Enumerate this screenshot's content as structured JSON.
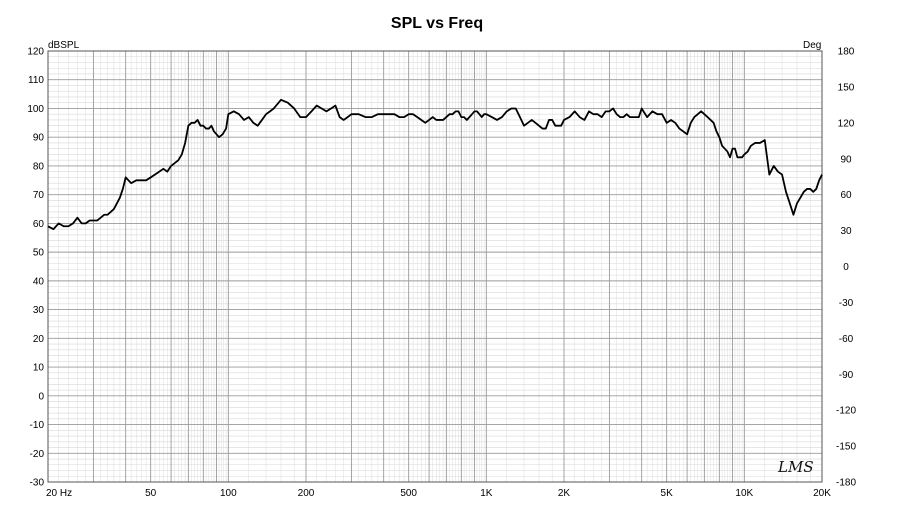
{
  "chart_data": {
    "type": "line",
    "title": "SPL vs Freq",
    "ylabel_left": "dBSPL",
    "ylabel_right": "Deg",
    "xscale": "log",
    "xlim": [
      20,
      20000
    ],
    "ylim": [
      -30,
      120
    ],
    "ylim_right": [
      -180,
      180
    ],
    "grid": true,
    "legend": "none",
    "x_ticks": [
      {
        "value": 20,
        "label": "20 Hz"
      },
      {
        "value": 50,
        "label": "50"
      },
      {
        "value": 100,
        "label": "100"
      },
      {
        "value": 200,
        "label": "200"
      },
      {
        "value": 500,
        "label": "500"
      },
      {
        "value": 1000,
        "label": "1K"
      },
      {
        "value": 2000,
        "label": "2K"
      },
      {
        "value": 5000,
        "label": "5K"
      },
      {
        "value": 10000,
        "label": "10K"
      },
      {
        "value": 20000,
        "label": "20K"
      }
    ],
    "y_ticks_left": [
      "120",
      "110",
      "100",
      "90",
      "80",
      "70",
      "60",
      "50",
      "40",
      "30",
      "20",
      "10",
      "0",
      "-10",
      "-20",
      "-30"
    ],
    "y_ticks_right": [
      "180",
      "150",
      "120",
      "90",
      "60",
      "30",
      "0",
      "-30",
      "-60",
      "-90",
      "-120",
      "-150",
      "-180"
    ],
    "series": [
      {
        "color": "#000000",
        "x": [
          20,
          21,
          22,
          23,
          24,
          25,
          26,
          27,
          28,
          29,
          30,
          31,
          32,
          33,
          34,
          35,
          36,
          37,
          38,
          39,
          40,
          42,
          44,
          46,
          48,
          50,
          52,
          54,
          56,
          58,
          60,
          62,
          64,
          66,
          68,
          70,
          72,
          74,
          76,
          78,
          80,
          82,
          84,
          86,
          88,
          90,
          92,
          95,
          98,
          100,
          105,
          110,
          115,
          120,
          125,
          130,
          135,
          140,
          145,
          150,
          160,
          170,
          180,
          190,
          200,
          210,
          220,
          230,
          240,
          250,
          260,
          270,
          280,
          290,
          300,
          320,
          340,
          360,
          380,
          400,
          420,
          440,
          460,
          480,
          500,
          520,
          540,
          560,
          580,
          600,
          620,
          640,
          660,
          680,
          700,
          720,
          740,
          760,
          780,
          800,
          820,
          840,
          860,
          880,
          900,
          920,
          940,
          960,
          980,
          1000,
          1050,
          1100,
          1150,
          1200,
          1250,
          1300,
          1350,
          1400,
          1450,
          1500,
          1550,
          1600,
          1650,
          1700,
          1750,
          1800,
          1850,
          1900,
          1950,
          2000,
          2100,
          2200,
          2300,
          2400,
          2500,
          2600,
          2700,
          2800,
          2900,
          3000,
          3100,
          3200,
          3300,
          3400,
          3500,
          3600,
          3700,
          3800,
          3900,
          4000,
          4200,
          4400,
          4600,
          4800,
          5000,
          5200,
          5400,
          5600,
          5800,
          6000,
          6200,
          6400,
          6600,
          6800,
          7000,
          7200,
          7400,
          7600,
          7800,
          8000,
          8200,
          8400,
          8600,
          8800,
          9000,
          9200,
          9400,
          9600,
          9800,
          10000,
          10300,
          10600,
          11000,
          11500,
          12000,
          12500,
          13000,
          13500,
          14000,
          14500,
          15000,
          15500,
          16000,
          16500,
          17000,
          17500,
          18000,
          18500,
          19000,
          19500,
          20000
        ],
        "y": [
          59,
          58,
          60,
          59,
          59,
          60,
          62,
          60,
          60,
          61,
          61,
          61,
          62,
          63,
          63,
          64,
          65,
          67,
          69,
          72,
          76,
          74,
          75,
          75,
          75,
          76,
          77,
          78,
          79,
          78,
          80,
          81,
          82,
          84,
          88,
          94,
          95,
          95,
          96,
          94,
          94,
          93,
          93,
          94,
          92,
          91,
          90,
          91,
          93,
          98,
          99,
          98,
          96,
          97,
          95,
          94,
          96,
          98,
          99,
          100,
          103,
          102,
          100,
          97,
          97,
          99,
          101,
          100,
          99,
          100,
          101,
          97,
          96,
          97,
          98,
          98,
          97,
          97,
          98,
          98,
          98,
          98,
          97,
          97,
          98,
          98,
          97,
          96,
          95,
          96,
          97,
          96,
          96,
          96,
          97,
          98,
          98,
          99,
          99,
          97,
          97,
          96,
          97,
          98,
          99,
          99,
          98,
          97,
          98,
          98,
          97,
          96,
          97,
          99,
          100,
          100,
          97,
          94,
          95,
          96,
          95,
          94,
          93,
          93,
          96,
          96,
          94,
          94,
          94,
          96,
          97,
          99,
          97,
          96,
          99,
          98,
          98,
          97,
          99,
          99,
          100,
          98,
          97,
          97,
          98,
          97,
          97,
          97,
          97,
          100,
          97,
          99,
          98,
          98,
          95,
          96,
          95,
          93,
          92,
          91,
          95,
          97,
          98,
          99,
          98,
          97,
          96,
          95,
          92,
          90,
          87,
          86,
          85,
          83,
          86,
          86,
          83,
          83,
          83,
          84,
          85,
          87,
          88,
          88,
          89,
          77,
          80,
          78,
          77,
          71,
          67,
          63,
          67,
          69,
          71,
          72,
          72,
          71,
          72,
          75,
          77
        ]
      }
    ]
  }
}
